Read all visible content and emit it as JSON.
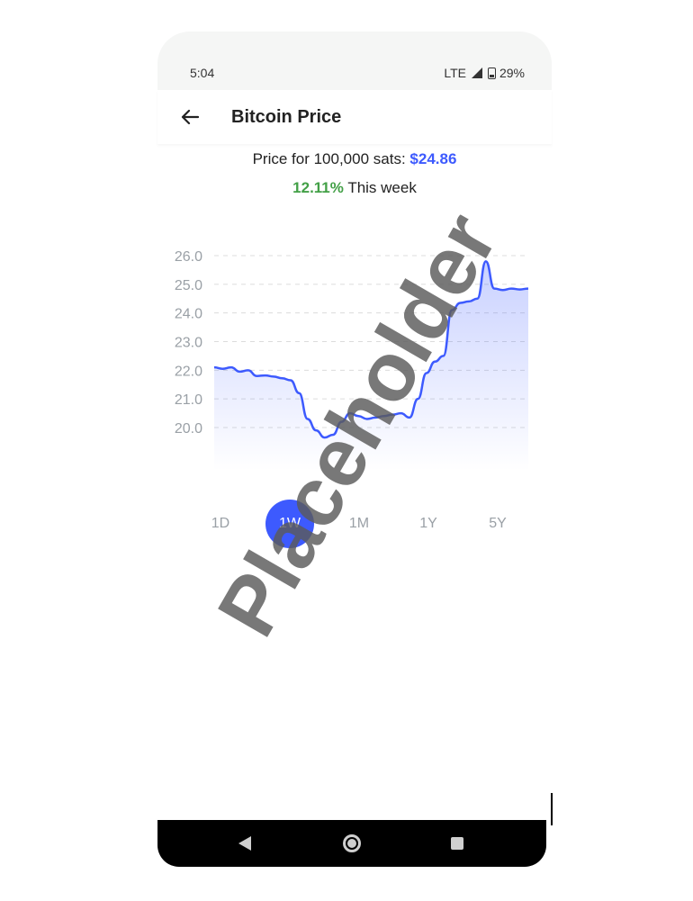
{
  "status_bar": {
    "time": "5:04",
    "network": "LTE",
    "battery": "29%"
  },
  "app_bar": {
    "title": "Bitcoin Price",
    "back_icon": "arrow-left-icon"
  },
  "price_info": {
    "label": "Price for 100,000 sats:",
    "price": "$24.86",
    "change_pct": "12.11%",
    "change_label": "This week"
  },
  "chart_data": {
    "type": "area",
    "title": "",
    "xlabel": "",
    "ylabel": "",
    "ylim": [
      18.5,
      26.5
    ],
    "y_ticks": [
      "26.0",
      "25.0",
      "24.0",
      "23.0",
      "22.0",
      "21.0",
      "20.0"
    ],
    "grid": true,
    "colors": {
      "line": "#3d5afe",
      "fill": "#3d5afe",
      "grid": "#dcdcdc"
    },
    "series": [
      {
        "values": [
          22.1,
          22.05,
          22.1,
          21.95,
          22.0,
          21.8,
          21.82,
          21.78,
          21.72,
          21.65,
          21.2,
          20.3,
          19.9,
          19.65,
          19.75,
          20.2,
          20.5,
          20.4,
          20.3,
          20.35,
          20.4,
          20.45,
          20.5,
          20.35,
          21.0,
          21.9,
          22.3,
          22.5,
          24.1,
          24.35,
          24.4,
          24.5,
          25.8,
          24.85,
          24.8,
          24.85,
          24.82,
          24.85
        ]
      }
    ]
  },
  "range_tabs": [
    {
      "label": "1D",
      "active": false
    },
    {
      "label": "1W",
      "active": true
    },
    {
      "label": "1M",
      "active": false
    },
    {
      "label": "1Y",
      "active": false
    },
    {
      "label": "5Y",
      "active": false
    }
  ],
  "watermark": "Placeholder",
  "nav_bar": {
    "back_icon": "nav-back-icon",
    "home_icon": "nav-home-icon",
    "recents_icon": "nav-recents-icon"
  }
}
